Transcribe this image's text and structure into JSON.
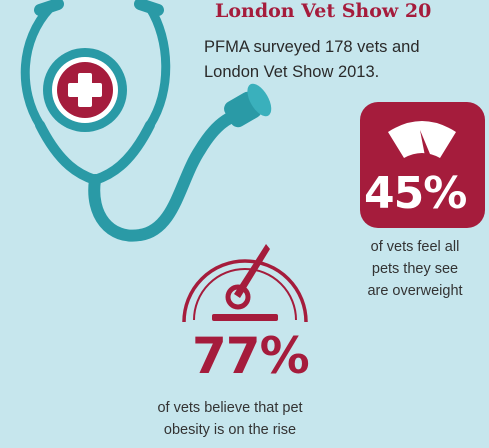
{
  "header": {
    "title": "London Vet Show 20",
    "intro": "PFMA surveyed 178 vets and\nLondon Vet Show 2013."
  },
  "stats": [
    {
      "value": "45%",
      "caption": "of vets feel all\npets they see\nare overweight"
    },
    {
      "value": "77%",
      "caption": "of vets believe that pet\nobesity is on the rise"
    }
  ],
  "colors": {
    "background": "#c6e6ed",
    "accent": "#a51c3c",
    "teal": "#2a9aa6"
  },
  "icons": [
    "stethoscope-icon",
    "medical-cross-icon",
    "weighing-scale-icon",
    "speedometer-gauge-icon"
  ]
}
